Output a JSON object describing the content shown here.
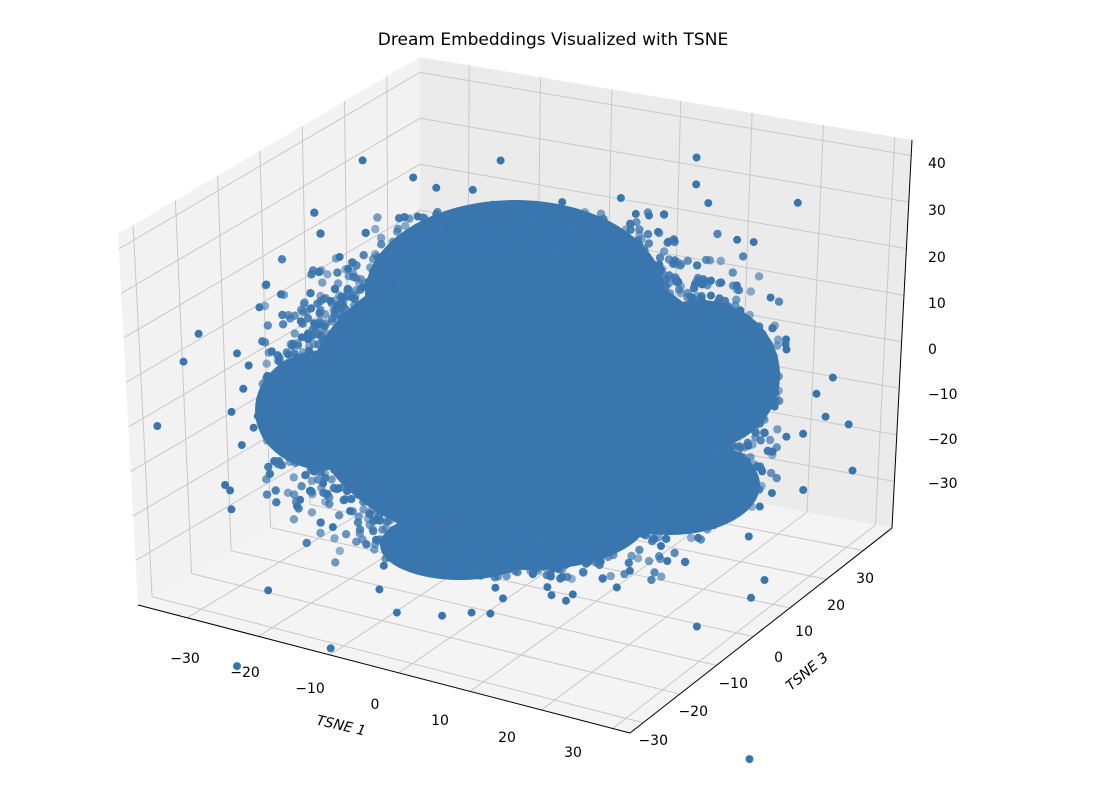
{
  "chart_data": {
    "type": "scatter",
    "projection": "3d",
    "title": "Dream Embeddings Visualized with TSNE",
    "xlabel": "TSNE 1",
    "ylabel": "TSNE 3",
    "zlabel": "",
    "xticks": [
      "−30",
      "−20",
      "−10",
      "0",
      "10",
      "20",
      "30"
    ],
    "yticks": [
      "−30",
      "−20",
      "−10",
      "0",
      "10",
      "20",
      "30"
    ],
    "zticks": [
      "40",
      "30",
      "20",
      "10",
      "0",
      "−10",
      "−20",
      "−30"
    ],
    "xlim": [
      -35,
      35
    ],
    "ylim": [
      -35,
      38
    ],
    "zlim": [
      -39,
      43
    ],
    "grid": true,
    "marker_color": "#3a76ae",
    "series": [
      {
        "cluster_summary": "dense roughly spherical cloud of t-SNE points",
        "x_range": [
          -35,
          35
        ],
        "y_range": [
          -30,
          30
        ],
        "z_range": [
          -30,
          30
        ]
      }
    ]
  }
}
